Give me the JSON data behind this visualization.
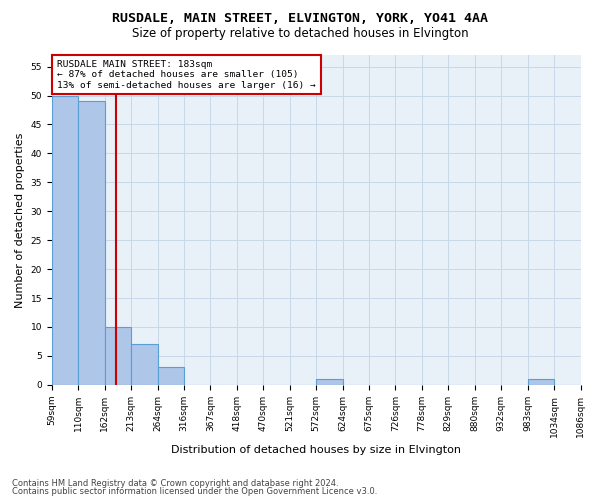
{
  "title1": "RUSDALE, MAIN STREET, ELVINGTON, YORK, YO41 4AA",
  "title2": "Size of property relative to detached houses in Elvington",
  "xlabel": "Distribution of detached houses by size in Elvington",
  "ylabel": "Number of detached properties",
  "bin_labels": [
    "59sqm",
    "110sqm",
    "162sqm",
    "213sqm",
    "264sqm",
    "316sqm",
    "367sqm",
    "418sqm",
    "470sqm",
    "521sqm",
    "572sqm",
    "624sqm",
    "675sqm",
    "726sqm",
    "778sqm",
    "829sqm",
    "880sqm",
    "932sqm",
    "983sqm",
    "1034sqm",
    "1086sqm"
  ],
  "bar_heights": [
    50,
    49,
    10,
    7,
    3,
    0,
    0,
    0,
    0,
    0,
    1,
    0,
    0,
    0,
    0,
    0,
    0,
    0,
    1,
    0
  ],
  "bar_color": "#aec6e8",
  "bar_edge_color": "#5a9fd4",
  "property_bin_index": 2.42,
  "property_label": "RUSDALE MAIN STREET: 183sqm",
  "annotation_line1": "← 87% of detached houses are smaller (105)",
  "annotation_line2": "13% of semi-detached houses are larger (16) →",
  "vline_color": "#cc0000",
  "annotation_box_color": "#cc0000",
  "ylim": [
    0,
    57
  ],
  "yticks": [
    0,
    5,
    10,
    15,
    20,
    25,
    30,
    35,
    40,
    45,
    50,
    55
  ],
  "grid_color": "#c8d8e8",
  "bg_color": "#e8f0f8",
  "footer1": "Contains HM Land Registry data © Crown copyright and database right 2024.",
  "footer2": "Contains public sector information licensed under the Open Government Licence v3.0.",
  "title_fontsize": 9.5,
  "subtitle_fontsize": 8.5,
  "tick_fontsize": 6.5,
  "ylabel_fontsize": 8,
  "xlabel_fontsize": 8,
  "footer_fontsize": 6
}
